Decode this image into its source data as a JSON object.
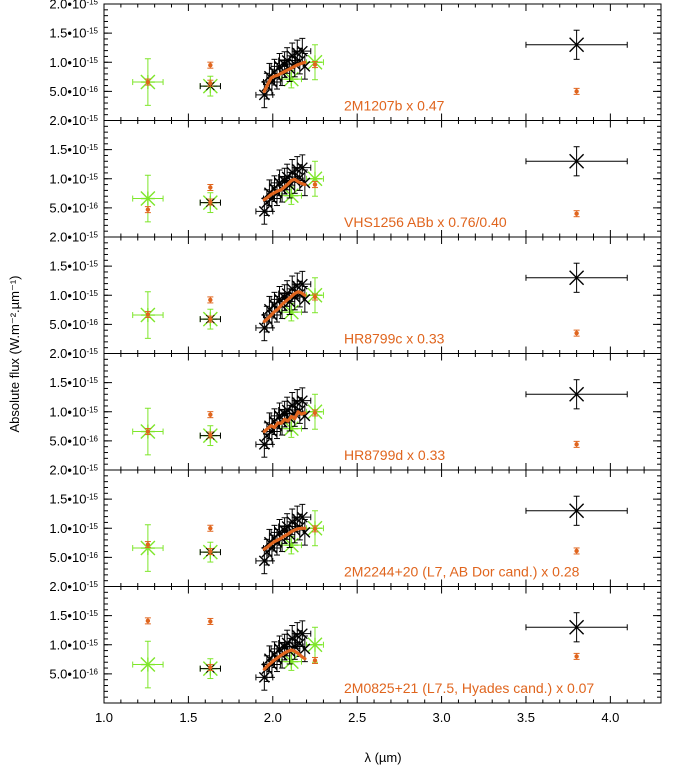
{
  "chart_data": {
    "type": "scatter",
    "xlabel": "λ (µm)",
    "ylabel": "Absolute flux (W.m⁻².µm⁻¹)",
    "xlim": [
      1.0,
      4.3
    ],
    "ylim": [
      0,
      2e-15
    ],
    "x_ticks": [
      "1.0",
      "1.5",
      "2.0",
      "2.5",
      "3.0",
      "3.5",
      "4.0"
    ],
    "y_ticks": [
      {
        "value": 5e-16,
        "mantissa": "5.0•10",
        "exponent": "-16"
      },
      {
        "value": 1e-15,
        "mantissa": "1.0•10",
        "exponent": "-15"
      },
      {
        "value": 1.5e-15,
        "mantissa": "1.5•10",
        "exponent": "-15"
      },
      {
        "value": 2e-15,
        "mantissa": "2.0•10",
        "exponent": "-15"
      }
    ],
    "colors": {
      "observed": "#000000",
      "photometry": "#7ee62a",
      "template": "#e0651e"
    },
    "observed": {
      "photometry": [
        {
          "x": 1.26,
          "y": 6.6e-16,
          "xerr": 0.09,
          "yerr": 4e-16
        },
        {
          "x": 1.63,
          "y": 5.9e-16,
          "xerr": 0.06,
          "yerr": 1.7e-16
        },
        {
          "x": 2.11,
          "y": 7.1e-16,
          "xerr": 0.06,
          "yerr": 1.5e-16
        },
        {
          "x": 2.25,
          "y": 1e-15,
          "xerr": 0.05,
          "yerr": 3e-16
        }
      ],
      "spectrum_x": [
        1.95,
        1.965,
        1.98,
        1.995,
        2.01,
        2.025,
        2.04,
        2.055,
        2.07,
        2.085,
        2.1,
        2.115,
        2.13,
        2.145,
        2.16,
        2.175,
        2.19
      ],
      "spectrum_y": [
        4.4e-16,
        5.9e-16,
        7.6e-16,
        6.6e-16,
        8.3e-16,
        7.6e-16,
        9.3e-16,
        8.2e-16,
        9.6e-16,
        1.03e-15,
        8.9e-16,
        1.11e-15,
        9.7e-16,
        1.16e-15,
        1.02e-15,
        1.19e-15,
        9.3e-16
      ],
      "spectrum_yerr": 2.2e-16,
      "spectrum_xerr": 0.05,
      "long_band": {
        "x": 3.8,
        "y": 1.3e-15,
        "xerr": 0.3,
        "yerr": 2.5e-16
      }
    },
    "panels": [
      {
        "label": "2M1207b x 0.47",
        "template_curve": {
          "x": [
            1.95,
            1.97,
            1.99,
            2.01,
            2.03,
            2.05,
            2.07,
            2.09,
            2.11,
            2.13,
            2.15,
            2.17,
            2.19
          ],
          "y": [
            5e-16,
            6.2e-16,
            7.3e-16,
            7.6e-16,
            7.8e-16,
            8.1e-16,
            8.4e-16,
            8.7e-16,
            9e-16,
            9.3e-16,
            9.6e-16,
            9.8e-16,
            1e-15
          ]
        },
        "template_points": [
          {
            "x": 1.26,
            "y": 6.6e-16
          },
          {
            "x": 1.63,
            "y": 9.5e-16
          },
          {
            "x": 1.63,
            "y": 6.4e-16
          },
          {
            "x": 2.25,
            "y": 9.6e-16
          },
          {
            "x": 3.8,
            "y": 5e-16
          }
        ]
      },
      {
        "label": "VHS1256 ABb x 0.76/0.40",
        "template_curve": {
          "x": [
            1.95,
            1.97,
            1.99,
            2.01,
            2.03,
            2.05,
            2.07,
            2.09,
            2.11,
            2.13,
            2.15,
            2.17,
            2.19
          ],
          "y": [
            6.4e-16,
            6.8e-16,
            7.3e-16,
            7.6e-16,
            7.9e-16,
            8.1e-16,
            8.6e-16,
            9.1e-16,
            9.7e-16,
            9.9e-16,
            9.5e-16,
            9.2e-16,
            9e-16
          ]
        },
        "template_points": [
          {
            "x": 1.26,
            "y": 4.7e-16
          },
          {
            "x": 1.63,
            "y": 8.5e-16
          },
          {
            "x": 1.63,
            "y": 6e-16
          },
          {
            "x": 2.25,
            "y": 9e-16
          },
          {
            "x": 3.8,
            "y": 4e-16
          }
        ]
      },
      {
        "label": "HR8799c x 0.33",
        "template_curve": {
          "x": [
            1.95,
            1.97,
            1.99,
            2.01,
            2.03,
            2.05,
            2.07,
            2.09,
            2.11,
            2.13,
            2.15,
            2.17,
            2.19
          ],
          "y": [
            5.5e-16,
            6e-16,
            6.6e-16,
            7.2e-16,
            7.6e-16,
            8.3e-16,
            8.8e-16,
            9.3e-16,
            9.8e-16,
            1.03e-15,
            1.06e-15,
            1.04e-15,
            1e-15
          ]
        },
        "template_points": [
          {
            "x": 1.26,
            "y": 6.7e-16
          },
          {
            "x": 1.63,
            "y": 9.2e-16
          },
          {
            "x": 1.63,
            "y": 5.9e-16
          },
          {
            "x": 2.25,
            "y": 9.7e-16
          },
          {
            "x": 3.8,
            "y": 3.5e-16
          }
        ]
      },
      {
        "label": "HR8799d x 0.33",
        "template_curve": {
          "x": [
            1.95,
            1.97,
            1.99,
            2.01,
            2.03,
            2.05,
            2.07,
            2.09,
            2.11,
            2.13,
            2.15,
            2.17,
            2.19
          ],
          "y": [
            6.6e-16,
            7.1e-16,
            7.6e-16,
            7.3e-16,
            8.1e-16,
            8e-16,
            8.7e-16,
            8.4e-16,
            9.2e-16,
            8.8e-16,
            1e-15,
            9.6e-16,
            9.8e-16
          ]
        },
        "template_points": [
          {
            "x": 1.26,
            "y": 6.6e-16
          },
          {
            "x": 1.63,
            "y": 9.5e-16
          },
          {
            "x": 1.63,
            "y": 6e-16
          },
          {
            "x": 2.25,
            "y": 9.8e-16
          },
          {
            "x": 3.8,
            "y": 4.4e-16
          }
        ]
      },
      {
        "label": "2M2244+20 (L7, AB Dor cand.) x 0.28",
        "template_curve": {
          "x": [
            1.95,
            1.97,
            1.99,
            2.01,
            2.03,
            2.05,
            2.07,
            2.09,
            2.11,
            2.13,
            2.15,
            2.17,
            2.19
          ],
          "y": [
            6.4e-16,
            6.8e-16,
            7.3e-16,
            7.7e-16,
            8e-16,
            8.3e-16,
            8.7e-16,
            9e-16,
            9.4e-16,
            9.7e-16,
            9.9e-16,
            1e-15,
            1e-15
          ]
        },
        "template_points": [
          {
            "x": 1.26,
            "y": 7.2e-16
          },
          {
            "x": 1.63,
            "y": 1e-15
          },
          {
            "x": 1.63,
            "y": 6e-16
          },
          {
            "x": 2.25,
            "y": 9.9e-16
          },
          {
            "x": 3.8,
            "y": 6.1e-16
          }
        ]
      },
      {
        "label": "2M0825+21 (L7.5, Hyades cand.) x 0.07",
        "template_curve": {
          "x": [
            1.95,
            1.97,
            1.99,
            2.01,
            2.03,
            2.05,
            2.07,
            2.09,
            2.11,
            2.13,
            2.15,
            2.17,
            2.19
          ],
          "y": [
            5.8e-16,
            6.4e-16,
            6.9e-16,
            7.4e-16,
            7.8e-16,
            8.2e-16,
            8.6e-16,
            8.9e-16,
            9.1e-16,
            8.9e-16,
            8.5e-16,
            8e-16,
            7.6e-16
          ]
        },
        "template_points": [
          {
            "x": 1.26,
            "y": 1.41e-15
          },
          {
            "x": 1.63,
            "y": 1.4e-15
          },
          {
            "x": 1.63,
            "y": 6.1e-16
          },
          {
            "x": 2.25,
            "y": 7.3e-16
          },
          {
            "x": 3.8,
            "y": 8e-16
          }
        ]
      }
    ]
  }
}
